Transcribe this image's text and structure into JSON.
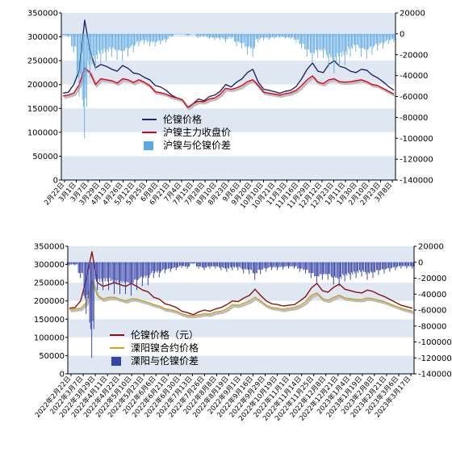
{
  "chart_data": [
    {
      "type": "line",
      "title": "",
      "xlabel": "",
      "ylabel": "",
      "ylim": [
        0,
        350000
      ],
      "y2lim": [
        -140000,
        20000
      ],
      "y_ticks": [
        "350000",
        "300000",
        "250000",
        "200000",
        "150000",
        "100000",
        "50000",
        "0"
      ],
      "y2_ticks": [
        "20000",
        "0",
        "-20000",
        "-40000",
        "-60000",
        "-80000",
        "-100000",
        "-120000",
        "-140000"
      ],
      "x_labels": [
        "2月22日",
        "3月1日",
        "3月7日",
        "3月29日",
        "4月13日",
        "4月26日",
        "5月12日",
        "5月25日",
        "6月8日",
        "6月21日",
        "7月4日",
        "7月15日",
        "7月28日",
        "8月10日",
        "8月23日",
        "9月6日",
        "9月20日",
        "10月10日",
        "10月21日",
        "11月3日",
        "11月16日",
        "11月29日",
        "12月12日",
        "12月23日",
        "1月11日",
        "1月30日",
        "2月10日",
        "2月23日",
        "3月8日"
      ],
      "legend_position": "center-left",
      "legend": [
        "伦镍价格",
        "沪镍主力收盘价",
        "沪镍与伦镍价差"
      ],
      "grid": "horizontal-bands",
      "series": [
        {
          "name": "伦镍价格",
          "color": "#1f2a66",
          "axis": "left",
          "kind": "line",
          "values": [
            182000,
            184000,
            200000,
            230000,
            335000,
            270000,
            235000,
            242000,
            238000,
            232000,
            228000,
            240000,
            234000,
            224000,
            222000,
            215000,
            210000,
            198000,
            195000,
            188000,
            178000,
            172000,
            168000,
            150000,
            160000,
            170000,
            166000,
            175000,
            178000,
            186000,
            200000,
            195000,
            205000,
            212000,
            225000,
            232000,
            205000,
            190000,
            188000,
            185000,
            182000,
            186000,
            188000,
            196000,
            212000,
            232000,
            245000,
            228000,
            225000,
            242000,
            250000,
            238000,
            235000,
            228000,
            225000,
            232000,
            230000,
            220000,
            214000,
            206000,
            196000,
            188000
          ]
        },
        {
          "name": "沪镍主力收盘价",
          "color": "#e3001b",
          "axis": "left",
          "kind": "line",
          "values": [
            176000,
            178000,
            182000,
            200000,
            235000,
            225000,
            200000,
            212000,
            210000,
            208000,
            203000,
            212000,
            210000,
            204000,
            210000,
            205000,
            198000,
            185000,
            183000,
            180000,
            175000,
            172000,
            168000,
            152000,
            160000,
            165000,
            164000,
            170000,
            172000,
            180000,
            192000,
            190000,
            193000,
            198000,
            206000,
            210000,
            198000,
            184000,
            182000,
            180000,
            178000,
            181000,
            183000,
            188000,
            198000,
            210000,
            218000,
            205000,
            202000,
            210000,
            212000,
            206000,
            205000,
            206000,
            208000,
            210000,
            206000,
            200000,
            198000,
            192000,
            186000,
            180000
          ]
        },
        {
          "name": "沪镍与伦镍价差",
          "color": "#5aa6e0",
          "axis": "right",
          "kind": "bar",
          "values": [
            -2000,
            -3000,
            -18000,
            -60000,
            -100000,
            -42000,
            -35000,
            -28000,
            -26000,
            -22000,
            -25000,
            -26000,
            -22000,
            -18000,
            -12000,
            -10000,
            -12000,
            -12000,
            -10000,
            -8000,
            -3000,
            0,
            0,
            -2000,
            0,
            -4000,
            -3000,
            -5000,
            -6000,
            -6000,
            -8000,
            -5000,
            -12000,
            -14000,
            -20000,
            -22000,
            -8000,
            -6000,
            -6000,
            -5000,
            -4000,
            -5000,
            -5000,
            -8000,
            -14000,
            -22000,
            -27000,
            -23000,
            -23000,
            -32000,
            -38000,
            -32000,
            -30000,
            -22000,
            -17000,
            -22000,
            -24000,
            -20000,
            -16000,
            -14000,
            -10000,
            -8000
          ]
        }
      ]
    },
    {
      "type": "line",
      "title": "",
      "xlabel": "",
      "ylabel": "",
      "ylim": [
        0,
        350000
      ],
      "y2lim": [
        -140000,
        20000
      ],
      "y_ticks": [
        "350000",
        "300000",
        "250000",
        "200000",
        "150000",
        "100000",
        "50000",
        "0"
      ],
      "y2_ticks": [
        "20000",
        "0",
        "-20000",
        "-40000",
        "-60000",
        "-80000",
        "-100000",
        "-120000",
        "-140000"
      ],
      "x_labels": [
        "2022年2月22日",
        "2022年3月7日",
        "2022年3月29日",
        "2022年4月11日",
        "2022年4月22日",
        "2022年5月10日",
        "2022年5月23日",
        "2022年6月6日",
        "2022年6月21日",
        "2022年6月30日",
        "2022年7月13日",
        "2022年7月26日",
        "2022年8月8日",
        "2022年8月19日",
        "2022年9月1日",
        "2022年9月16日",
        "2022年9月29日",
        "2022年10月19日",
        "2022年11月1日",
        "2022年11月14日",
        "2022年11月25日",
        "2022年12月8日",
        "2022年12月21日",
        "2023年1月4日",
        "2023年1月19日",
        "2023年2月8日",
        "2023年2月21日",
        "2023年3月6日",
        "2023年3月17日"
      ],
      "legend_position": "center-left",
      "legend": [
        "伦镍价格（元）",
        "溧阳镍合约价格",
        "溧阳与伦镍价差"
      ],
      "grid": "horizontal-bands",
      "series": [
        {
          "name": "伦镍价格（元）",
          "color": "#8b1111",
          "axis": "left",
          "kind": "line",
          "values": [
            180000,
            182000,
            200000,
            260000,
            335000,
            250000,
            240000,
            245000,
            250000,
            245000,
            240000,
            248000,
            240000,
            230000,
            225000,
            210000,
            205000,
            192000,
            188000,
            182000,
            172000,
            168000,
            162000,
            170000,
            175000,
            172000,
            178000,
            182000,
            190000,
            200000,
            198000,
            208000,
            215000,
            232000,
            215000,
            200000,
            192000,
            190000,
            186000,
            188000,
            190000,
            200000,
            212000,
            235000,
            248000,
            228000,
            224000,
            238000,
            246000,
            232000,
            228000,
            224000,
            222000,
            230000,
            226000,
            218000,
            212000,
            204000,
            196000,
            188000,
            184000,
            180000
          ]
        },
        {
          "name": "溧阳镍合约价格",
          "color": "#c9a227",
          "axis": "left",
          "kind": "line",
          "values": [
            176000,
            178000,
            180000,
            195000,
            255000,
            215000,
            205000,
            210000,
            210000,
            205000,
            200000,
            206000,
            205000,
            200000,
            196000,
            190000,
            186000,
            178000,
            176000,
            172000,
            165000,
            160000,
            160000,
            162000,
            165000,
            164000,
            170000,
            172000,
            178000,
            190000,
            188000,
            194000,
            200000,
            210000,
            200000,
            188000,
            182000,
            180000,
            177000,
            180000,
            182000,
            188000,
            198000,
            215000,
            222000,
            206000,
            202000,
            210000,
            216000,
            208000,
            206000,
            204000,
            204000,
            208000,
            206000,
            202000,
            198000,
            192000,
            186000,
            180000,
            176000,
            172000
          ]
        },
        {
          "name": "溧阳与伦镍价差",
          "color": "#3845a8",
          "axis": "right",
          "kind": "bar",
          "values": [
            -4000,
            -4000,
            -20000,
            -65000,
            -120000,
            -35000,
            -35000,
            -35000,
            -40000,
            -40000,
            -40000,
            -42000,
            -35000,
            -30000,
            -29000,
            -20000,
            -19000,
            -14000,
            -12000,
            -10000,
            -7000,
            -8000,
            -2000,
            -8000,
            -10000,
            -8000,
            -8000,
            -10000,
            -12000,
            -10000,
            -10000,
            -14000,
            -15000,
            -22000,
            -15000,
            -12000,
            -10000,
            -10000,
            -9000,
            -8000,
            -8000,
            -12000,
            -14000,
            -20000,
            -26000,
            -22000,
            -22000,
            -28000,
            -30000,
            -24000,
            -22000,
            -20000,
            -18000,
            -22000,
            -20000,
            -16000,
            -14000,
            -12000,
            -10000,
            -8000,
            -8000,
            -8000
          ]
        }
      ]
    }
  ]
}
